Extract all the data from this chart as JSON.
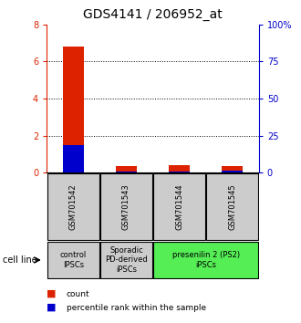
{
  "title": "GDS4141 / 206952_at",
  "samples": [
    "GSM701542",
    "GSM701543",
    "GSM701544",
    "GSM701545"
  ],
  "count_values": [
    6.8,
    0.35,
    0.4,
    0.35
  ],
  "percentile_values": [
    1.5,
    0.05,
    0.05,
    0.1
  ],
  "ylim_left": [
    0,
    8
  ],
  "ylim_right": [
    0,
    100
  ],
  "yticks_left": [
    0,
    2,
    4,
    6,
    8
  ],
  "yticks_right": [
    0,
    25,
    50,
    75,
    100
  ],
  "ytick_labels_left": [
    "0",
    "2",
    "4",
    "6",
    "8"
  ],
  "ytick_labels_right": [
    "0",
    "25",
    "50",
    "75",
    "100%"
  ],
  "bar_width": 0.4,
  "count_color": "#dd2200",
  "percentile_color": "#0000cc",
  "title_fontsize": 10,
  "groups": [
    {
      "label": "control\nIPSCs",
      "samples": [
        0
      ],
      "color": "#cccccc"
    },
    {
      "label": "Sporadic\nPD-derived\niPSCs",
      "samples": [
        1
      ],
      "color": "#cccccc"
    },
    {
      "label": "presenilin 2 (PS2)\niPSCs",
      "samples": [
        2,
        3
      ],
      "color": "#55ee55"
    }
  ],
  "cell_line_label": "cell line",
  "legend_count_label": "count",
  "legend_percentile_label": "percentile rank within the sample",
  "box_bg_color": "#cccccc"
}
